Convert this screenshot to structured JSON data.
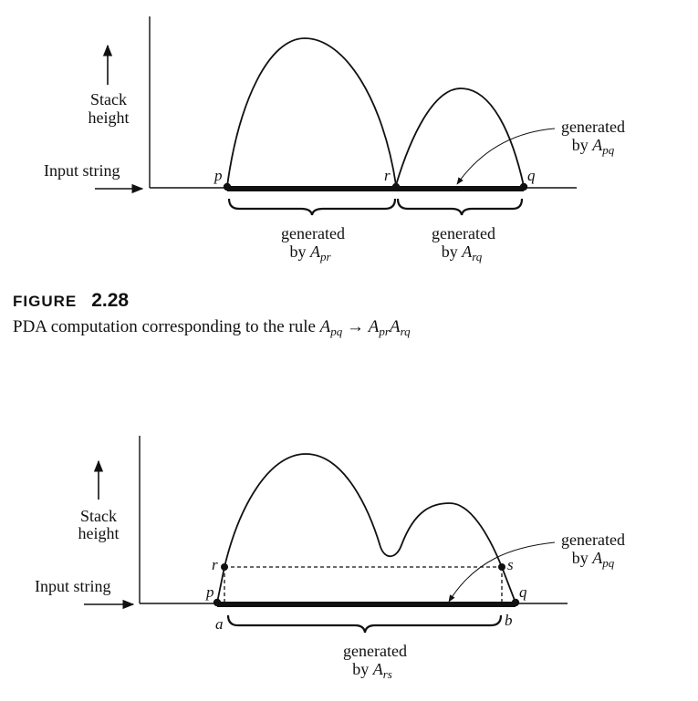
{
  "figure_top": {
    "axis_label_stack": [
      "Stack",
      "height"
    ],
    "axis_label_input": "Input string",
    "points": [
      "p",
      "r",
      "q"
    ],
    "brace_left": {
      "line1": "generated",
      "by": "by",
      "var": "A",
      "sub": "pr"
    },
    "brace_right": {
      "line1": "generated",
      "by": "by",
      "var": "A",
      "sub": "rq"
    },
    "callout": {
      "line1": "generated",
      "by": "by",
      "var": "A",
      "sub": "pq"
    }
  },
  "caption": {
    "figure_word": "FIGURE",
    "figure_number": "2.28",
    "text_prefix": "PDA computation corresponding to the rule ",
    "lhs_var": "A",
    "lhs_sub": "pq",
    "arrow": "→",
    "rhs1_var": "A",
    "rhs1_sub": "pr",
    "rhs2_var": "A",
    "rhs2_sub": "rq"
  },
  "figure_bottom": {
    "axis_label_stack": [
      "Stack",
      "height"
    ],
    "axis_label_input": "Input string",
    "points": [
      "r",
      "s",
      "p",
      "q",
      "a",
      "b"
    ],
    "brace": {
      "line1": "generated",
      "by": "by",
      "var": "A",
      "sub": "rs"
    },
    "callout": {
      "line1": "generated",
      "by": "by",
      "var": "A",
      "sub": "pq"
    }
  }
}
